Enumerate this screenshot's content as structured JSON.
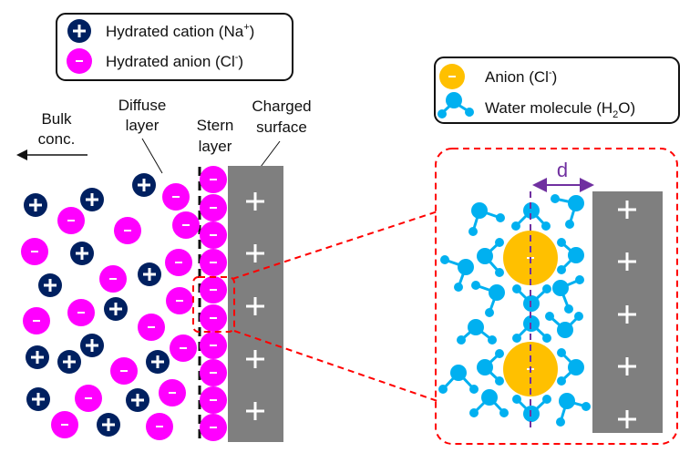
{
  "legend_left": {
    "cation_label": "Hydrated cation (Na",
    "cation_sup": "+",
    "cation_close": ")",
    "anion_label": "Hydrated anion (Cl",
    "anion_sup": "-",
    "anion_close": ")"
  },
  "legend_right": {
    "anion_label": "Anion (Cl",
    "anion_sup": "-",
    "anion_close": ")",
    "water_label": "Water molecule (H",
    "water_sub": "2",
    "water_close": "O)"
  },
  "labels": {
    "bulk_line1": "Bulk",
    "bulk_line2": "conc.",
    "diffuse_line1": "Diffuse",
    "diffuse_line2": "layer",
    "stern_line1": "Stern",
    "stern_line2": "layer",
    "charged_line1": "Charged",
    "charged_line2": "surface",
    "distance": "d"
  },
  "colors": {
    "cation": "#002060",
    "anion": "#FF00FF",
    "surface": "#7F7F7F",
    "water": "#00B0F0",
    "bare_anion": "#FFC000",
    "distance_marker": "#7030A0",
    "zoom_outline": "#FF0000"
  }
}
